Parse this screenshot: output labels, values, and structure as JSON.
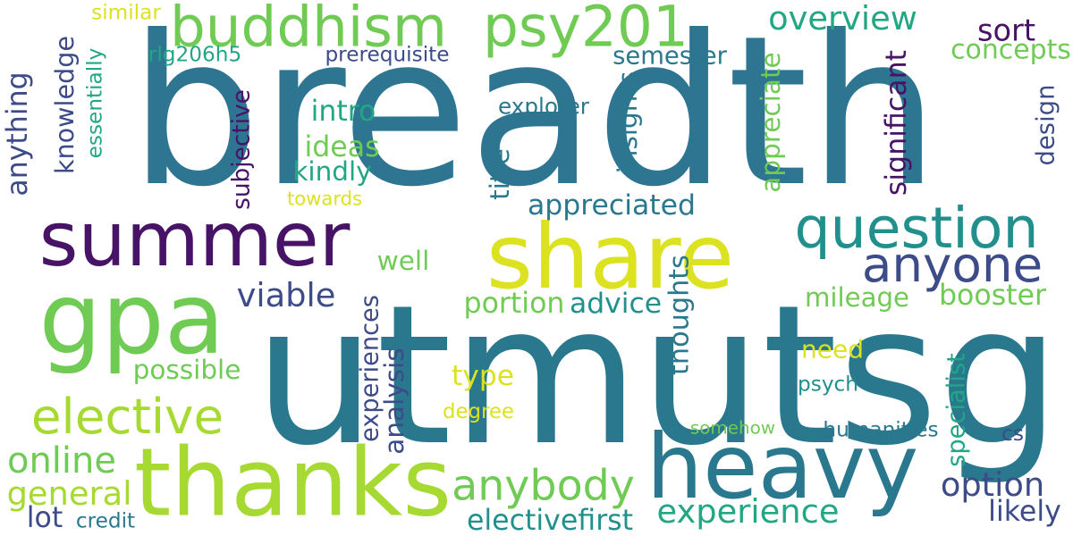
{
  "word_cloud": {
    "palette": {
      "background": "#ffffff",
      "c1": "#2e7591",
      "c2": "#471366",
      "c3": "#dce21f",
      "c4": "#70cb55",
      "c5": "#21908c",
      "c6": "#3d4b89",
      "c7": "#a6da32",
      "c8": "#29788e",
      "c9": "#22a785"
    },
    "words": [
      {
        "text": "breadth",
        "color": "c1"
      },
      {
        "text": "utmutsg",
        "color": "c8"
      },
      {
        "text": "summer",
        "color": "c2"
      },
      {
        "text": "share",
        "color": "c3"
      },
      {
        "text": "gpa",
        "color": "c4"
      },
      {
        "text": "thanks",
        "color": "c7"
      },
      {
        "text": "heavy",
        "color": "c8"
      },
      {
        "text": "question",
        "color": "c5"
      },
      {
        "text": "buddhism",
        "color": "c4"
      },
      {
        "text": "psy201",
        "color": "c4"
      },
      {
        "text": "anyone",
        "color": "c6"
      },
      {
        "text": "elective",
        "color": "c7"
      },
      {
        "text": "anybody",
        "color": "c4"
      },
      {
        "text": "overview",
        "color": "c9"
      },
      {
        "text": "sort",
        "color": "c2"
      },
      {
        "text": "concepts",
        "color": "c4"
      },
      {
        "text": "semester",
        "color": "c8"
      },
      {
        "text": "explorer",
        "color": "c8"
      },
      {
        "text": "intro",
        "color": "c9"
      },
      {
        "text": "ideas",
        "color": "c4"
      },
      {
        "text": "kindly",
        "color": "c9"
      },
      {
        "text": "subjective",
        "color": "c2"
      },
      {
        "text": "knowledge",
        "color": "c6"
      },
      {
        "text": "anything",
        "color": "c6"
      },
      {
        "text": "essentially",
        "color": "c9"
      },
      {
        "text": "similar",
        "color": "c3"
      },
      {
        "text": "rlg206h5",
        "color": "c9"
      },
      {
        "text": "prerequisite",
        "color": "c6"
      },
      {
        "text": "towards",
        "color": "c3"
      },
      {
        "text": "title",
        "color": "c8"
      },
      {
        "text": "insights",
        "color": "c8"
      },
      {
        "text": "appreciate",
        "color": "c4"
      },
      {
        "text": "significant",
        "color": "c2"
      },
      {
        "text": "design",
        "color": "c6"
      },
      {
        "text": "appreciated",
        "color": "c8"
      },
      {
        "text": "viable",
        "color": "c6"
      },
      {
        "text": "well",
        "color": "c4"
      },
      {
        "text": "portion",
        "color": "c4"
      },
      {
        "text": "advice",
        "color": "c5"
      },
      {
        "text": "thoughts",
        "color": "c8"
      },
      {
        "text": "mileage",
        "color": "c4"
      },
      {
        "text": "booster",
        "color": "c4"
      },
      {
        "text": "need",
        "color": "c3"
      },
      {
        "text": "experiences",
        "color": "c6"
      },
      {
        "text": "analysis",
        "color": "c6"
      },
      {
        "text": "possible",
        "color": "c4"
      },
      {
        "text": "type",
        "color": "c3"
      },
      {
        "text": "degree",
        "color": "c3"
      },
      {
        "text": "psych",
        "color": "c5"
      },
      {
        "text": "somehow",
        "color": "c4"
      },
      {
        "text": "humanities",
        "color": "c8"
      },
      {
        "text": "specialist",
        "color": "c9"
      },
      {
        "text": "cs",
        "color": "c6"
      },
      {
        "text": "online",
        "color": "c4"
      },
      {
        "text": "general",
        "color": "c7"
      },
      {
        "text": "option",
        "color": "c6"
      },
      {
        "text": "likely",
        "color": "c6"
      },
      {
        "text": "experience",
        "color": "c9"
      },
      {
        "text": "electivefirst",
        "color": "c5"
      },
      {
        "text": "lot",
        "color": "c6"
      },
      {
        "text": "credit",
        "color": "c8"
      }
    ]
  }
}
